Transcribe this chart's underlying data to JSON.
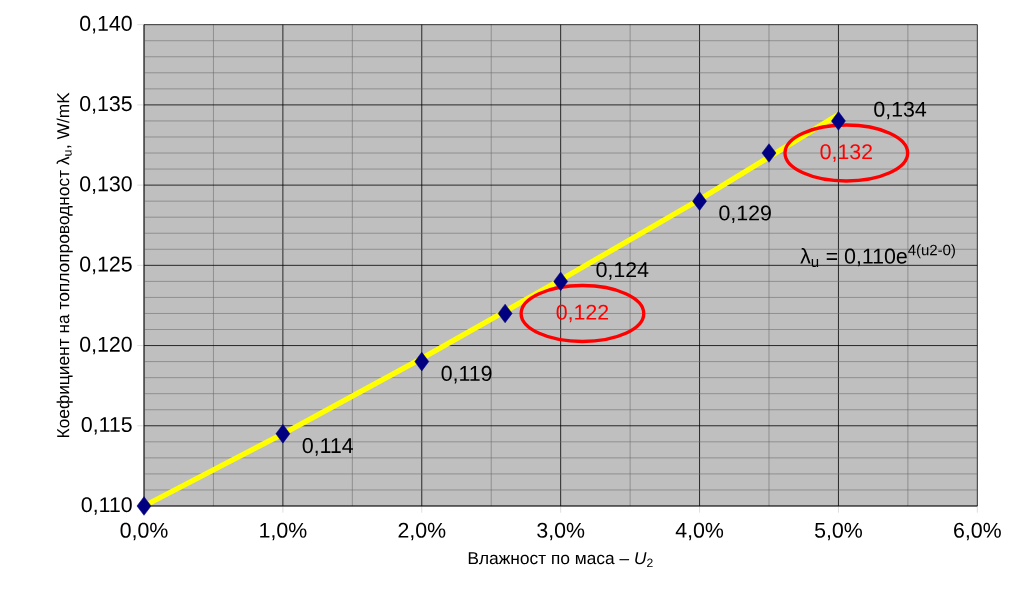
{
  "chart_data": {
    "type": "scatter",
    "xlabel": "Влажност по маса – *U*$_{2}$",
    "ylabel": "Коефициент на топлопроводност λ$_{u}$, W/mK",
    "xlim": [
      0,
      6
    ],
    "ylim": [
      0.11,
      0.14
    ],
    "xticks": [
      {
        "value": 0,
        "label": "0,0%"
      },
      {
        "value": 1,
        "label": "1,0%"
      },
      {
        "value": 2,
        "label": "2,0%"
      },
      {
        "value": 3,
        "label": "3,0%"
      },
      {
        "value": 4,
        "label": "4,0%"
      },
      {
        "value": 5,
        "label": "5,0%"
      },
      {
        "value": 6,
        "label": "6,0%"
      }
    ],
    "yticks": [
      {
        "value": 0.11,
        "label": "0,110"
      },
      {
        "value": 0.115,
        "label": "0,115"
      },
      {
        "value": 0.12,
        "label": "0,120"
      },
      {
        "value": 0.125,
        "label": "0,125"
      },
      {
        "value": 0.13,
        "label": "0,130"
      },
      {
        "value": 0.135,
        "label": "0,135"
      },
      {
        "value": 0.14,
        "label": "0,140"
      }
    ],
    "grid": true,
    "series": [
      {
        "color": "#000080",
        "marker": "diamond",
        "x": [
          0,
          1,
          2,
          2.6,
          3,
          4,
          4.5,
          5
        ],
        "values": [
          0.11,
          0.1145,
          0.119,
          0.122,
          0.124,
          0.129,
          0.132,
          0.134
        ],
        "value_labels": [
          null,
          "0,114",
          "0,119",
          null,
          "0,124",
          "0,129",
          null,
          "0,134"
        ]
      },
      {
        "type": "line",
        "color": "#ffff00",
        "marker": "none",
        "line_style": "solid",
        "x": [
          0,
          1,
          2,
          3,
          4,
          5
        ],
        "values": [
          0.11,
          0.1145,
          0.1192,
          0.1241,
          0.1291,
          0.1344
        ]
      }
    ],
    "annotations": [
      {
        "text": "0,122",
        "x": 2.6,
        "y": 0.122
      },
      {
        "text": "0,132",
        "x": 4.5,
        "y": 0.132
      },
      "λ$_{u}$ = 0,110e$^{4(u2-0)}$"
    ]
  }
}
